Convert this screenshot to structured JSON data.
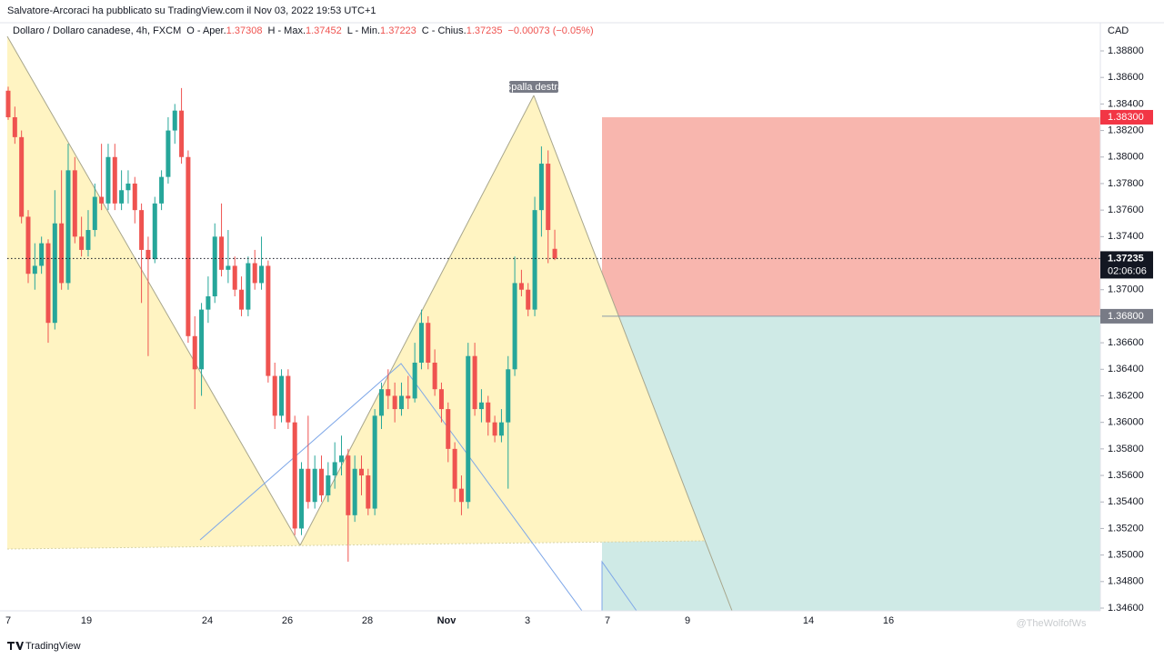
{
  "publisher": "Salvatore-Arcoraci ha pubblicato su TradingView.com il Nov 03, 2022 19:53 UTC+1",
  "legend": {
    "symbol": "Dollaro / Dollaro canadese, 4h, FXCM",
    "ohlc": [
      {
        "label": "O - Aper.",
        "value": "1.37308"
      },
      {
        "label": "H - Max.",
        "value": "1.37452"
      },
      {
        "label": "L - Min.",
        "value": "1.37223"
      },
      {
        "label": "C - Chius.",
        "value": "1.37235"
      }
    ],
    "change": "−0.00073 (−0.05%)"
  },
  "footer": "TradingView",
  "watermark": "@TheWolfofWs",
  "chart_data": {
    "type": "candlestick",
    "currency": "CAD",
    "annotation": "Spalla destra",
    "up_color": "#26a69a",
    "down_color": "#ef5350",
    "x_labels": [
      "7",
      "19",
      "24",
      "26",
      "28",
      "Nov",
      "3",
      "7",
      "9",
      "14",
      "16"
    ],
    "ylim": [
      1.346,
      1.388
    ],
    "yticks": [
      {
        "value": 1.388,
        "label": "1.38800"
      },
      {
        "value": 1.386,
        "label": "1.38600"
      },
      {
        "value": 1.384,
        "label": "1.38400"
      },
      {
        "value": 1.382,
        "label": "1.38200"
      },
      {
        "value": 1.38,
        "label": "1.38000"
      },
      {
        "value": 1.378,
        "label": "1.37800"
      },
      {
        "value": 1.376,
        "label": "1.37600"
      },
      {
        "value": 1.374,
        "label": "1.37400"
      },
      {
        "value": 1.372,
        "label": "1.37200"
      },
      {
        "value": 1.37,
        "label": "1.37000"
      },
      {
        "value": 1.368,
        "label": "1.36800"
      },
      {
        "value": 1.366,
        "label": "1.36600"
      },
      {
        "value": 1.364,
        "label": "1.36400"
      },
      {
        "value": 1.362,
        "label": "1.36200"
      },
      {
        "value": 1.36,
        "label": "1.36000"
      },
      {
        "value": 1.358,
        "label": "1.35800"
      },
      {
        "value": 1.356,
        "label": "1.35600"
      },
      {
        "value": 1.354,
        "label": "1.35400"
      },
      {
        "value": 1.352,
        "label": "1.35200"
      },
      {
        "value": 1.35,
        "label": "1.35000"
      },
      {
        "value": 1.348,
        "label": "1.34800"
      },
      {
        "value": 1.346,
        "label": "1.34600"
      }
    ],
    "stop": {
      "value": 1.383,
      "label": "1.38300"
    },
    "entry": {
      "value": 1.368,
      "label": "1.36800"
    },
    "last_price": 1.37235,
    "countdown": "02:06:06",
    "candles": [
      [
        1.385,
        1.3853,
        1.3828,
        1.383
      ],
      [
        1.383,
        1.3838,
        1.381,
        1.3815
      ],
      [
        1.3815,
        1.382,
        1.375,
        1.3755
      ],
      [
        1.3755,
        1.376,
        1.3705,
        1.3712
      ],
      [
        1.3712,
        1.3735,
        1.37,
        1.3718
      ],
      [
        1.3718,
        1.374,
        1.3712,
        1.3735
      ],
      [
        1.3735,
        1.3738,
        1.366,
        1.3675
      ],
      [
        1.3675,
        1.3775,
        1.367,
        1.375
      ],
      [
        1.375,
        1.379,
        1.37,
        1.3705
      ],
      [
        1.3705,
        1.381,
        1.37,
        1.379
      ],
      [
        1.379,
        1.38,
        1.3735,
        1.374
      ],
      [
        1.374,
        1.3755,
        1.3725,
        1.373
      ],
      [
        1.373,
        1.376,
        1.3725,
        1.3745
      ],
      [
        1.3745,
        1.378,
        1.374,
        1.377
      ],
      [
        1.377,
        1.381,
        1.376,
        1.3765
      ],
      [
        1.3765,
        1.381,
        1.376,
        1.38
      ],
      [
        1.38,
        1.381,
        1.376,
        1.3765
      ],
      [
        1.3765,
        1.379,
        1.376,
        1.3775
      ],
      [
        1.3775,
        1.379,
        1.3765,
        1.378
      ],
      [
        1.378,
        1.3785,
        1.375,
        1.376
      ],
      [
        1.376,
        1.3765,
        1.369,
        1.373
      ],
      [
        1.373,
        1.374,
        1.365,
        1.3723
      ],
      [
        1.3723,
        1.377,
        1.372,
        1.3765
      ],
      [
        1.3765,
        1.379,
        1.376,
        1.3785
      ],
      [
        1.3785,
        1.383,
        1.378,
        1.382
      ],
      [
        1.382,
        1.384,
        1.381,
        1.3835
      ],
      [
        1.3835,
        1.3852,
        1.3795,
        1.38
      ],
      [
        1.38,
        1.3805,
        1.366,
        1.3665
      ],
      [
        1.3665,
        1.368,
        1.361,
        1.364
      ],
      [
        1.364,
        1.369,
        1.362,
        1.3685
      ],
      [
        1.3685,
        1.371,
        1.3675,
        1.3695
      ],
      [
        1.3695,
        1.375,
        1.369,
        1.374
      ],
      [
        1.374,
        1.3765,
        1.371,
        1.3715
      ],
      [
        1.3715,
        1.3745,
        1.3705,
        1.3718
      ],
      [
        1.3718,
        1.3725,
        1.3695,
        1.37
      ],
      [
        1.37,
        1.371,
        1.368,
        1.3685
      ],
      [
        1.3685,
        1.3725,
        1.368,
        1.372
      ],
      [
        1.372,
        1.373,
        1.37,
        1.3705
      ],
      [
        1.3705,
        1.374,
        1.37,
        1.3718
      ],
      [
        1.3718,
        1.3722,
        1.363,
        1.3635
      ],
      [
        1.3635,
        1.3645,
        1.3595,
        1.3605
      ],
      [
        1.3605,
        1.364,
        1.36,
        1.3635
      ],
      [
        1.3635,
        1.364,
        1.3595,
        1.36
      ],
      [
        1.36,
        1.3605,
        1.3515,
        1.352
      ],
      [
        1.352,
        1.357,
        1.3515,
        1.3565
      ],
      [
        1.3565,
        1.3605,
        1.3535,
        1.354
      ],
      [
        1.354,
        1.3575,
        1.3535,
        1.3565
      ],
      [
        1.3565,
        1.3575,
        1.354,
        1.3545
      ],
      [
        1.3545,
        1.357,
        1.354,
        1.356
      ],
      [
        1.356,
        1.3585,
        1.355,
        1.357
      ],
      [
        1.357,
        1.359,
        1.356,
        1.3575
      ],
      [
        1.3575,
        1.358,
        1.3495,
        1.353
      ],
      [
        1.353,
        1.3575,
        1.3525,
        1.3565
      ],
      [
        1.3565,
        1.3575,
        1.3545,
        1.356
      ],
      [
        1.356,
        1.3565,
        1.353,
        1.3535
      ],
      [
        1.3535,
        1.361,
        1.353,
        1.3605
      ],
      [
        1.3605,
        1.363,
        1.3595,
        1.3625
      ],
      [
        1.3625,
        1.364,
        1.361,
        1.362
      ],
      [
        1.362,
        1.363,
        1.36,
        1.361
      ],
      [
        1.361,
        1.363,
        1.3605,
        1.362
      ],
      [
        1.362,
        1.3635,
        1.361,
        1.3618
      ],
      [
        1.3618,
        1.366,
        1.3615,
        1.3645
      ],
      [
        1.3645,
        1.3685,
        1.364,
        1.3675
      ],
      [
        1.3675,
        1.368,
        1.364,
        1.3645
      ],
      [
        1.3645,
        1.3655,
        1.362,
        1.3625
      ],
      [
        1.3625,
        1.363,
        1.36,
        1.361
      ],
      [
        1.361,
        1.3615,
        1.357,
        1.358
      ],
      [
        1.358,
        1.3585,
        1.354,
        1.355
      ],
      [
        1.355,
        1.356,
        1.353,
        1.354
      ],
      [
        1.354,
        1.366,
        1.3535,
        1.365
      ],
      [
        1.365,
        1.366,
        1.3605,
        1.361
      ],
      [
        1.361,
        1.3625,
        1.36,
        1.3615
      ],
      [
        1.3615,
        1.362,
        1.359,
        1.36
      ],
      [
        1.36,
        1.3605,
        1.3585,
        1.359
      ],
      [
        1.359,
        1.361,
        1.3585,
        1.36
      ],
      [
        1.36,
        1.365,
        1.355,
        1.364
      ],
      [
        1.364,
        1.3725,
        1.3635,
        1.3705
      ],
      [
        1.3705,
        1.3715,
        1.3695,
        1.37
      ],
      [
        1.37,
        1.3705,
        1.368,
        1.3685
      ],
      [
        1.3685,
        1.377,
        1.368,
        1.376
      ],
      [
        1.376,
        1.3808,
        1.374,
        1.3795
      ],
      [
        1.3795,
        1.3805,
        1.372,
        1.3745
      ],
      [
        1.37308,
        1.37452,
        1.37223,
        1.37235
      ]
    ]
  }
}
